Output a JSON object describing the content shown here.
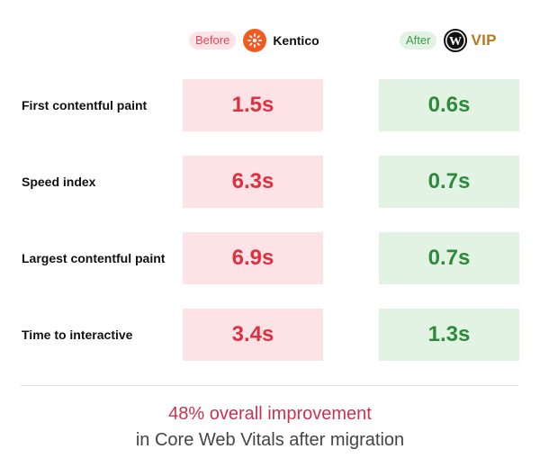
{
  "header": {
    "before_label": "Before",
    "before_brand": "Kentico",
    "after_label": "After",
    "after_brand": "VIP"
  },
  "colors": {
    "before_bg": "#fde3e6",
    "before_text": "#e0303f",
    "after_bg": "#e2f3e3",
    "after_text": "#2e8a3a",
    "headline": "#c9334f"
  },
  "icons": {
    "before_logo": "kentico-logo-icon",
    "after_logo": "wordpress-logo-icon"
  },
  "metrics": [
    {
      "label": "First contentful paint",
      "before": "1.5s",
      "after": "0.6s"
    },
    {
      "label": "Speed index",
      "before": "6.3s",
      "after": "0.7s"
    },
    {
      "label": "Largest contentful paint",
      "before": "6.9s",
      "after": "0.7s"
    },
    {
      "label": "Time to interactive",
      "before": "3.4s",
      "after": "1.3s"
    }
  ],
  "footer": {
    "headline": "48% overall improvement",
    "subline": "in Core Web Vitals after migration"
  }
}
